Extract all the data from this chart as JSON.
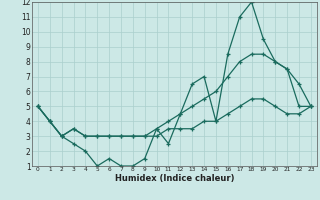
{
  "xlabel": "Humidex (Indice chaleur)",
  "bg_color": "#cce8e6",
  "grid_color": "#aacfcd",
  "line_color": "#1a6b5e",
  "xlim": [
    -0.5,
    23.5
  ],
  "ylim": [
    1,
    12
  ],
  "xticks": [
    0,
    1,
    2,
    3,
    4,
    5,
    6,
    7,
    8,
    9,
    10,
    11,
    12,
    13,
    14,
    15,
    16,
    17,
    18,
    19,
    20,
    21,
    22,
    23
  ],
  "yticks": [
    1,
    2,
    3,
    4,
    5,
    6,
    7,
    8,
    9,
    10,
    11,
    12
  ],
  "series": [
    {
      "x": [
        0,
        1,
        2,
        3,
        4,
        5,
        6,
        7,
        8,
        9,
        10,
        11,
        12,
        13,
        14,
        15,
        16,
        17,
        18,
        19,
        20,
        21,
        22,
        23
      ],
      "y": [
        5,
        4,
        3,
        2.5,
        2,
        1,
        1.5,
        1,
        1,
        1.5,
        3.5,
        2.5,
        4.5,
        6.5,
        7,
        4,
        8.5,
        11,
        12,
        9.5,
        8,
        7.5,
        6.5,
        5
      ]
    },
    {
      "x": [
        0,
        1,
        2,
        3,
        4,
        5,
        6,
        7,
        8,
        9,
        10,
        11,
        12,
        13,
        14,
        15,
        16,
        17,
        18,
        19,
        20,
        21,
        22,
        23
      ],
      "y": [
        5,
        4,
        3,
        3.5,
        3,
        3,
        3,
        3,
        3,
        3,
        3.5,
        4,
        4.5,
        5,
        5.5,
        6,
        7,
        8,
        8.5,
        8.5,
        8,
        7.5,
        5,
        5
      ]
    },
    {
      "x": [
        0,
        1,
        2,
        3,
        4,
        5,
        6,
        7,
        8,
        9,
        10,
        11,
        12,
        13,
        14,
        15,
        16,
        17,
        18,
        19,
        20,
        21,
        22,
        23
      ],
      "y": [
        5,
        4,
        3,
        3.5,
        3,
        3,
        3,
        3,
        3,
        3,
        3,
        3.5,
        3.5,
        3.5,
        4,
        4,
        4.5,
        5,
        5.5,
        5.5,
        5,
        4.5,
        4.5,
        5
      ]
    }
  ]
}
